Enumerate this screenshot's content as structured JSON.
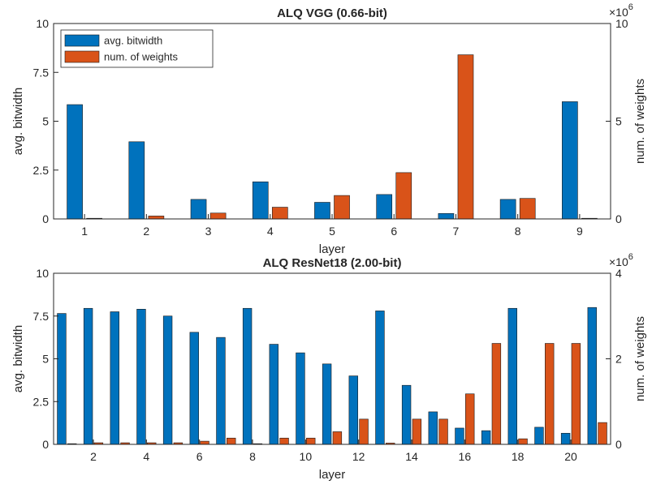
{
  "chart_data": [
    {
      "type": "bar",
      "title": "ALQ VGG (0.66-bit)",
      "xlabel": "layer",
      "ylabel": "avg. bitwidth",
      "y2label": "num. of weights",
      "y2_multiplier_base": "×10",
      "y2_multiplier_exp": "6",
      "categories": [
        1,
        2,
        3,
        4,
        5,
        6,
        7,
        8,
        9
      ],
      "xticks": [
        "1",
        "2",
        "3",
        "4",
        "5",
        "6",
        "7",
        "8",
        "9"
      ],
      "ylim": [
        0,
        10
      ],
      "yticks": [
        "0",
        "2.5",
        "5",
        "7.5",
        "10"
      ],
      "yticks_values": [
        0,
        2.5,
        5,
        7.5,
        10
      ],
      "y2lim": [
        0,
        10
      ],
      "y2ticks": [
        "0",
        "5",
        "10"
      ],
      "y2ticks_values": [
        0,
        5,
        10
      ],
      "legend_position": "top-left",
      "series": [
        {
          "name": "avg. bitwidth",
          "axis": "left",
          "color": "#0072BD",
          "values": [
            5.85,
            3.95,
            1.0,
            1.9,
            0.85,
            1.25,
            0.28,
            1.0,
            6.0
          ]
        },
        {
          "name": "num. of weights",
          "axis": "right",
          "color": "#D95319",
          "values": [
            0.002,
            0.15,
            0.3,
            0.6,
            1.2,
            2.37,
            8.4,
            1.05,
            0.005
          ]
        }
      ]
    },
    {
      "type": "bar",
      "title": "ALQ ResNet18 (2.00-bit)",
      "xlabel": "layer",
      "ylabel": "avg. bitwidth",
      "y2label": "num. of weights",
      "y2_multiplier_base": "×10",
      "y2_multiplier_exp": "6",
      "categories": [
        1,
        2,
        3,
        4,
        5,
        6,
        7,
        8,
        9,
        10,
        11,
        12,
        13,
        14,
        15,
        16,
        17,
        18,
        19,
        20,
        21
      ],
      "xticks": [
        "2",
        "4",
        "6",
        "8",
        "10",
        "12",
        "14",
        "16",
        "18",
        "20"
      ],
      "xticks_values": [
        2,
        4,
        6,
        8,
        10,
        12,
        14,
        16,
        18,
        20
      ],
      "ylim": [
        0,
        10
      ],
      "yticks": [
        "0",
        "2.5",
        "5",
        "7.5",
        "10"
      ],
      "yticks_values": [
        0,
        2.5,
        5,
        7.5,
        10
      ],
      "y2lim": [
        0,
        4
      ],
      "y2ticks": [
        "0",
        "2",
        "4"
      ],
      "y2ticks_values": [
        0,
        2,
        4
      ],
      "series": [
        {
          "name": "avg. bitwidth",
          "axis": "left",
          "color": "#0072BD",
          "values": [
            7.65,
            7.95,
            7.75,
            7.9,
            7.5,
            6.55,
            6.25,
            7.95,
            5.85,
            5.35,
            4.7,
            4.0,
            7.8,
            3.45,
            1.9,
            0.95,
            0.8,
            7.95,
            1.0,
            0.65,
            8.0
          ]
        },
        {
          "name": "num. of weights",
          "axis": "right",
          "color": "#D95319",
          "values": [
            0.005,
            0.037,
            0.037,
            0.037,
            0.037,
            0.074,
            0.147,
            0.003,
            0.147,
            0.147,
            0.295,
            0.59,
            0.03,
            0.59,
            0.59,
            1.18,
            2.36,
            0.13,
            2.36,
            2.36,
            0.51
          ]
        }
      ]
    }
  ]
}
